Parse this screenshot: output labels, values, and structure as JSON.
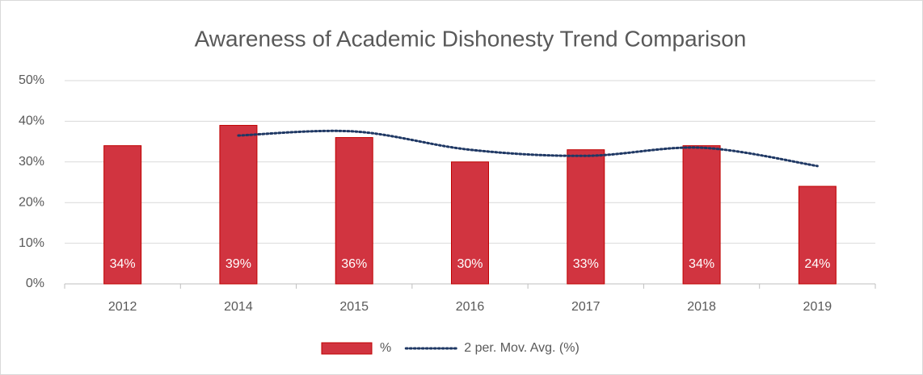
{
  "chart_data": {
    "type": "bar",
    "title": "Awareness of Academic Dishonesty Trend Comparison",
    "categories": [
      "2012",
      "2014",
      "2015",
      "2016",
      "2017",
      "2018",
      "2019"
    ],
    "series": [
      {
        "name": "%",
        "type": "bar",
        "color": "#d13440",
        "values": [
          34,
          39,
          36,
          30,
          33,
          34,
          24
        ],
        "value_labels": [
          "34%",
          "39%",
          "36%",
          "30%",
          "33%",
          "34%",
          "24%"
        ]
      },
      {
        "name": "2 per. Mov. Avg. (%)",
        "type": "line",
        "color": "#1f3864",
        "values": [
          null,
          36.5,
          37.5,
          33,
          31.5,
          33.5,
          29
        ]
      }
    ],
    "ylim": [
      0,
      50
    ],
    "yticks": [
      {
        "value": 0,
        "label": "0%"
      },
      {
        "value": 10,
        "label": "10%"
      },
      {
        "value": 20,
        "label": "20%"
      },
      {
        "value": 30,
        "label": "30%"
      },
      {
        "value": 40,
        "label": "40%"
      },
      {
        "value": 50,
        "label": "50%"
      }
    ],
    "grid": true,
    "legend": "bottom"
  }
}
